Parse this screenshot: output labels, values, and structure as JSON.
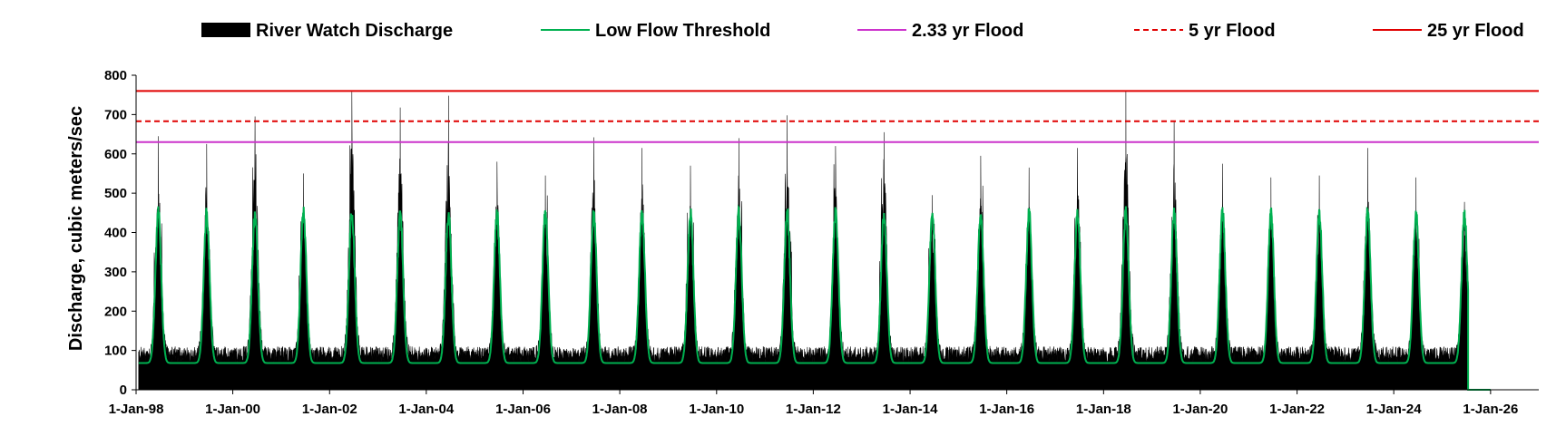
{
  "chart_data": {
    "type": "area",
    "title": "",
    "xlabel": "",
    "ylabel": "Discharge, cubic meters/sec",
    "ylim": [
      0,
      800
    ],
    "yticks": [
      0,
      100,
      200,
      300,
      400,
      500,
      600,
      700,
      800
    ],
    "xlim": [
      "1998-01-01",
      "2026-12-31"
    ],
    "xticks": [
      "1-Jan-98",
      "1-Jan-00",
      "1-Jan-02",
      "1-Jan-04",
      "1-Jan-06",
      "1-Jan-08",
      "1-Jan-10",
      "1-Jan-12",
      "1-Jan-14",
      "1-Jan-16",
      "1-Jan-18",
      "1-Jan-20",
      "1-Jan-22",
      "1-Jan-24",
      "1-Jan-26"
    ],
    "grid": false,
    "legend_position": "top",
    "legend": [
      {
        "name": "River Watch Discharge",
        "style": "area",
        "color": "#000000"
      },
      {
        "name": "Low Flow Threshold",
        "style": "line",
        "color": "#00b050"
      },
      {
        "name": "2.33 yr Flood",
        "style": "line",
        "color": "#cc33cc"
      },
      {
        "name": "5 yr Flood",
        "style": "dashed",
        "color": "#e00000"
      },
      {
        "name": "25 yr Flood",
        "style": "line",
        "color": "#e00000"
      }
    ],
    "thresholds": [
      {
        "name": "2.33 yr Flood",
        "value": 630,
        "color": "#cc33cc",
        "dashed": false
      },
      {
        "name": "5 yr Flood",
        "value": 683,
        "color": "#e00000",
        "dashed": true
      },
      {
        "name": "25 yr Flood",
        "value": 760,
        "color": "#e00000",
        "dashed": false
      }
    ],
    "series": [
      {
        "name": "River Watch Discharge",
        "color": "#000000",
        "base": 70,
        "annual_peaks": [
          {
            "year": 1998,
            "peak": 645
          },
          {
            "year": 1999,
            "peak": 625
          },
          {
            "year": 2000,
            "peak": 695
          },
          {
            "year": 2001,
            "peak": 550
          },
          {
            "year": 2002,
            "peak": 758
          },
          {
            "year": 2003,
            "peak": 718
          },
          {
            "year": 2004,
            "peak": 748
          },
          {
            "year": 2005,
            "peak": 580
          },
          {
            "year": 2006,
            "peak": 545
          },
          {
            "year": 2007,
            "peak": 642
          },
          {
            "year": 2008,
            "peak": 615
          },
          {
            "year": 2009,
            "peak": 570
          },
          {
            "year": 2010,
            "peak": 640
          },
          {
            "year": 2011,
            "peak": 698
          },
          {
            "year": 2012,
            "peak": 620
          },
          {
            "year": 2013,
            "peak": 655
          },
          {
            "year": 2014,
            "peak": 495
          },
          {
            "year": 2015,
            "peak": 595
          },
          {
            "year": 2016,
            "peak": 565
          },
          {
            "year": 2017,
            "peak": 615
          },
          {
            "year": 2018,
            "peak": 760
          },
          {
            "year": 2019,
            "peak": 683
          },
          {
            "year": 2020,
            "peak": 575
          },
          {
            "year": 2021,
            "peak": 540
          },
          {
            "year": 2022,
            "peak": 545
          },
          {
            "year": 2023,
            "peak": 615
          },
          {
            "year": 2024,
            "peak": 540
          },
          {
            "year": 2025,
            "peak": 478
          }
        ],
        "data_end": "2025-07-15"
      },
      {
        "name": "Low Flow Threshold",
        "color": "#00b050",
        "base": 68,
        "seasonal_peak": 460,
        "after_data_end": 0
      }
    ]
  }
}
